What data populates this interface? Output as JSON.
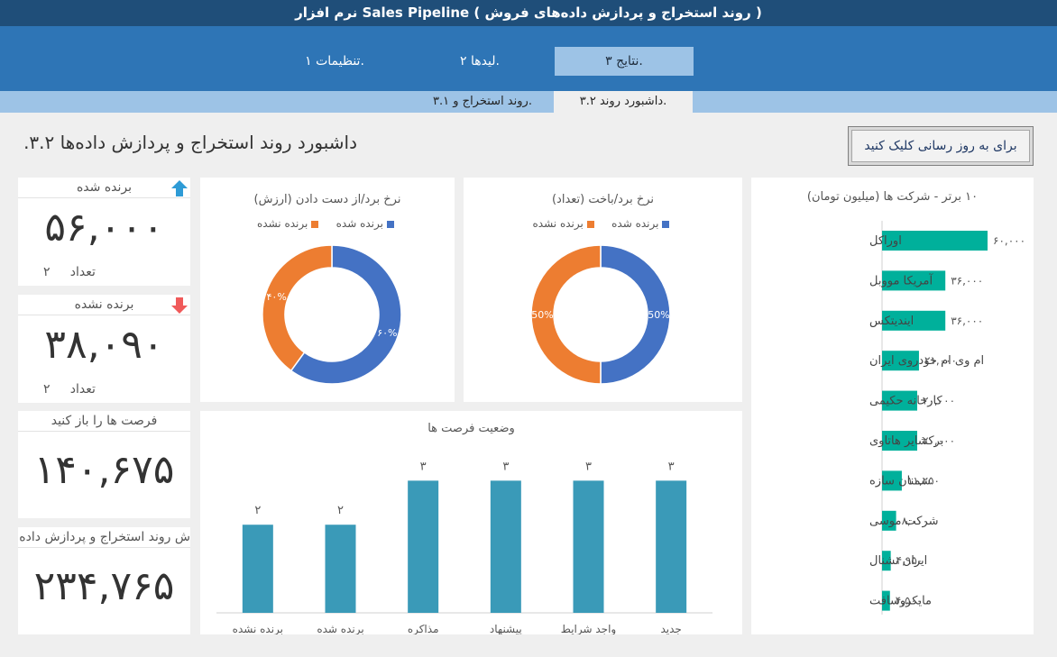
{
  "app": {
    "title": "نرم افزار Sales Pipeline ( روند استخراج و  پردازش داده‌های فروش )"
  },
  "tabs": [
    {
      "label": "تنظیمات ۱."
    },
    {
      "label": "لیدها ۲."
    },
    {
      "label": "نتایج ۳.",
      "active": true
    }
  ],
  "subtabs": [
    {
      "label": "روند  استخراج و ۳.۱."
    },
    {
      "label": "داشبورد  روند  ۳.۲.",
      "active": true
    }
  ],
  "page": {
    "title": "داشبورد روند استخراج و پردازش داده‌ها ۳.۲.",
    "refresh_label": "برای به روز رسانی کلیک کنید"
  },
  "kpis": {
    "won": {
      "title": "برنده شده",
      "value": "۵۶,۰۰۰",
      "count_label": "تعداد",
      "count": "۲"
    },
    "lost": {
      "title": "برنده نشده",
      "value": "۳۸,۰۹۰",
      "count_label": "تعداد",
      "count": "۲"
    },
    "open": {
      "title": "فرصت ها را باز کنید",
      "value": "۱۴۰,۶۷۵"
    },
    "total": {
      "title": "ش روند استخراج و پردازش داده",
      "value": "۲۳۴,۷۶۵"
    }
  },
  "colors": {
    "won": "#4472c4",
    "lost": "#ed7d31",
    "bar": "#3a9ab8",
    "company_bar": "#00b09b",
    "up_arrow": "#2e9bd6",
    "down_arrow": "#f05a5a"
  },
  "chart_data": [
    {
      "type": "pie",
      "title": "نرخ برد/از دست دادن (ارزش)",
      "legend": [
        "برنده شده",
        "برنده نشده"
      ],
      "labels": [
        "برنده شده",
        "برنده نشده"
      ],
      "values": [
        60,
        40
      ],
      "value_labels": [
        "۶۰%",
        "۴۰%"
      ],
      "legend_position": "top"
    },
    {
      "type": "pie",
      "title": "نرخ برد/باخت (تعداد)",
      "legend": [
        "برنده شده",
        "برنده نشده"
      ],
      "labels": [
        "برنده شده",
        "برنده نشده"
      ],
      "values": [
        50,
        50
      ],
      "value_labels": [
        "50%",
        "50%"
      ],
      "legend_position": "top"
    },
    {
      "type": "bar",
      "title": "وضعیت فرصت ها",
      "categories": [
        "جدید",
        "واجد شرایط",
        "پیشنهاد",
        "مذاکره",
        "برنده شده",
        "برنده نشده"
      ],
      "values": [
        3,
        3,
        3,
        3,
        2,
        2
      ],
      "value_labels": [
        "۳",
        "۳",
        "۳",
        "۳",
        "۲",
        "۲"
      ],
      "ylim": [
        0,
        3.6
      ]
    },
    {
      "type": "bar",
      "orientation": "horizontal",
      "title": "۱۰ برتر - شرکت ها (میلیون تومان)",
      "categories": [
        "اوراکل",
        "آمریکا مووبل",
        "ایندیتکس",
        "ام وی ام خودروی ایران",
        "کارخانه حکیمی",
        "برکشایر هاتاوی",
        "سمنان سازه",
        "شرکت موسی",
        "ایران نشنال",
        "مایکروسافت"
      ],
      "values": [
        60000,
        36000,
        36000,
        21000,
        20000,
        20000,
        11250,
        8000,
        4950,
        4500
      ],
      "value_labels": [
        "۶۰,۰۰۰",
        "۳۶,۰۰۰",
        "۳۶,۰۰۰",
        "۲۱,۰۰۰",
        "۲۰,۰۰۰",
        "۲۰,۰۰۰",
        "۱۱,۲۵۰",
        "۸,۰۰۰",
        "۴,۹۵۰",
        "۴,۵۰۰"
      ],
      "xlim": [
        0,
        60000
      ]
    }
  ]
}
